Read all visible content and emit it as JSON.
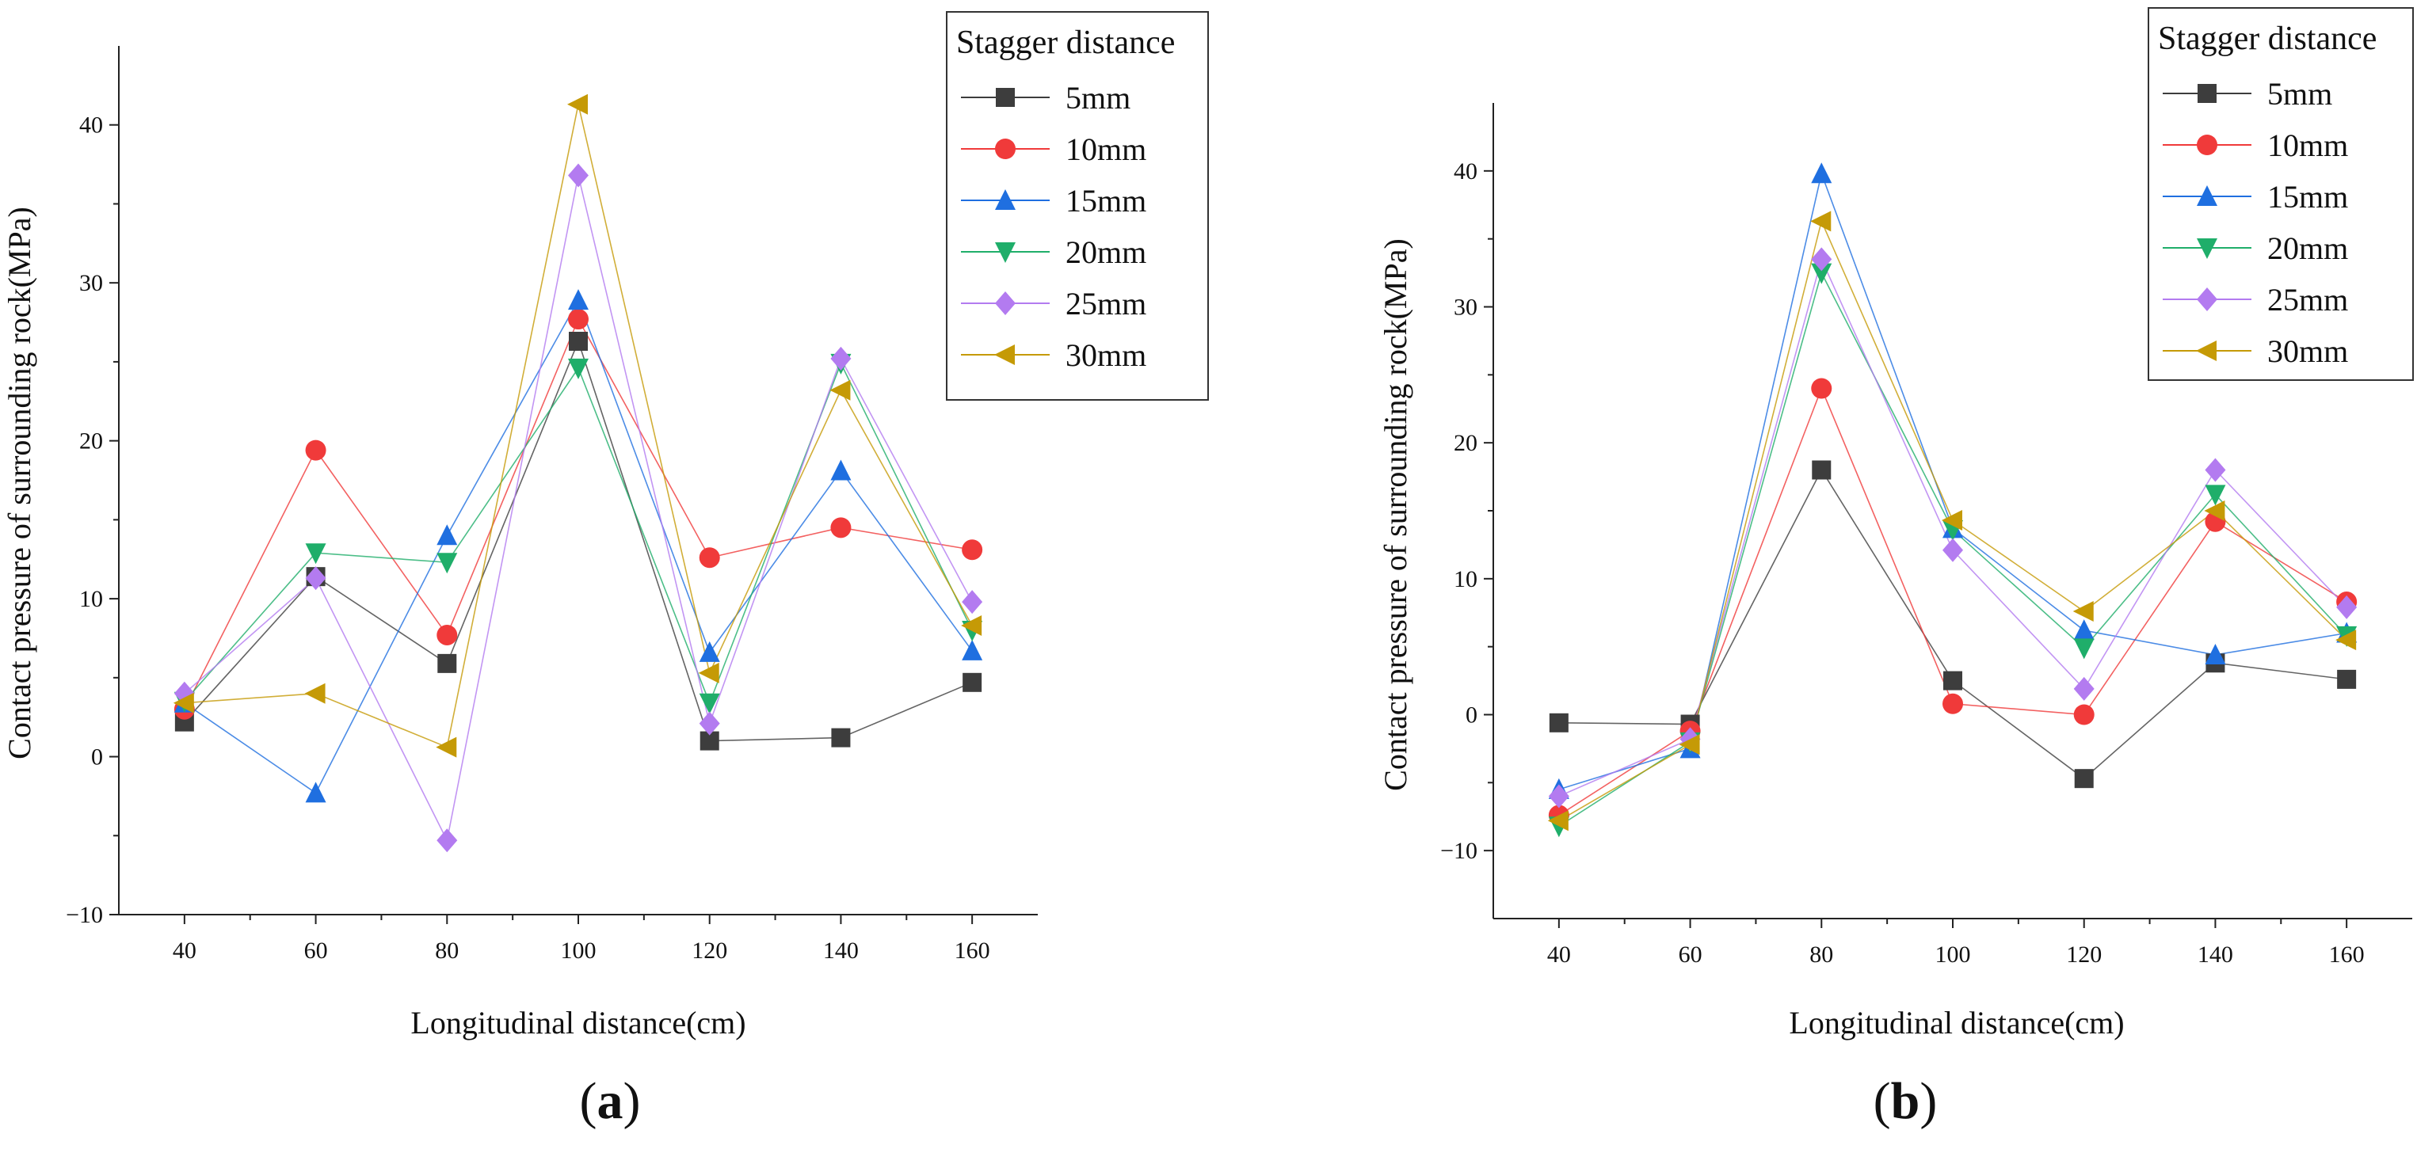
{
  "charts": [
    {
      "panel_label": "a",
      "legend_title": "Stagger distance",
      "chart_data": {
        "type": "line",
        "xlabel": "Longitudinal distance(cm)",
        "ylabel": "Contact pressure of surrounding rock(MPa)",
        "x": [
          40,
          60,
          80,
          100,
          120,
          140,
          160
        ],
        "x_ticks": [
          40,
          60,
          80,
          100,
          120,
          140,
          160
        ],
        "y_ticks": [
          -10,
          0,
          10,
          20,
          30,
          40
        ],
        "xlim": [
          30,
          170
        ],
        "ylim": [
          -10,
          45
        ],
        "legend_position": "top-right",
        "series": [
          {
            "name": "5mm",
            "color": "#3d3d3d",
            "marker": "square",
            "values": [
              2.2,
              11.4,
              5.9,
              26.3,
              1.0,
              1.2,
              4.7
            ]
          },
          {
            "name": "10mm",
            "color": "#f03a3a",
            "marker": "circle",
            "values": [
              3.0,
              19.4,
              7.7,
              27.7,
              12.6,
              14.5,
              13.1
            ]
          },
          {
            "name": "15mm",
            "color": "#1f6fe0",
            "marker": "triangle-up",
            "values": [
              3.4,
              -2.3,
              14.0,
              28.9,
              6.6,
              18.1,
              6.7
            ]
          },
          {
            "name": "20mm",
            "color": "#1fae6a",
            "marker": "triangle-down",
            "values": [
              3.5,
              12.9,
              12.3,
              24.6,
              3.4,
              24.9,
              8.0
            ]
          },
          {
            "name": "25mm",
            "color": "#b37bf0",
            "marker": "diamond",
            "values": [
              4.0,
              11.3,
              -5.3,
              36.8,
              2.1,
              25.2,
              9.8
            ]
          },
          {
            "name": "30mm",
            "color": "#c59a06",
            "marker": "triangle-left",
            "values": [
              3.4,
              4.0,
              0.6,
              41.3,
              5.3,
              23.2,
              8.3
            ]
          }
        ]
      }
    },
    {
      "panel_label": "b",
      "legend_title": "Stagger distance",
      "chart_data": {
        "type": "line",
        "xlabel": "Longitudinal distance(cm)",
        "ylabel": "Contact pressure of surrounding rock(MPa)",
        "x": [
          40,
          60,
          80,
          100,
          120,
          140,
          160
        ],
        "x_ticks": [
          40,
          60,
          80,
          100,
          120,
          140,
          160
        ],
        "y_ticks": [
          -10,
          0,
          10,
          20,
          30,
          40
        ],
        "xlim": [
          30,
          170
        ],
        "ylim": [
          -15,
          45
        ],
        "legend_position": "top-right",
        "series": [
          {
            "name": "5mm",
            "color": "#3d3d3d",
            "marker": "square",
            "values": [
              -0.6,
              -0.7,
              18.0,
              2.5,
              -4.7,
              3.8,
              2.6
            ]
          },
          {
            "name": "10mm",
            "color": "#f03a3a",
            "marker": "circle",
            "values": [
              -7.4,
              -1.2,
              24.0,
              0.8,
              0.0,
              14.2,
              8.3
            ]
          },
          {
            "name": "15mm",
            "color": "#1f6fe0",
            "marker": "triangle-up",
            "values": [
              -5.5,
              -2.5,
              39.8,
              13.7,
              6.2,
              4.4,
              6.0
            ]
          },
          {
            "name": "20mm",
            "color": "#1fae6a",
            "marker": "triangle-down",
            "values": [
              -8.2,
              -2.0,
              32.5,
              13.6,
              4.9,
              16.2,
              5.8
            ]
          },
          {
            "name": "25mm",
            "color": "#b37bf0",
            "marker": "diamond",
            "values": [
              -6.0,
              -1.8,
              33.5,
              12.1,
              1.9,
              18.0,
              7.9
            ]
          },
          {
            "name": "30mm",
            "color": "#c59a06",
            "marker": "triangle-left",
            "values": [
              -7.8,
              -2.2,
              36.3,
              14.3,
              7.6,
              15.0,
              5.5
            ]
          }
        ]
      }
    }
  ]
}
